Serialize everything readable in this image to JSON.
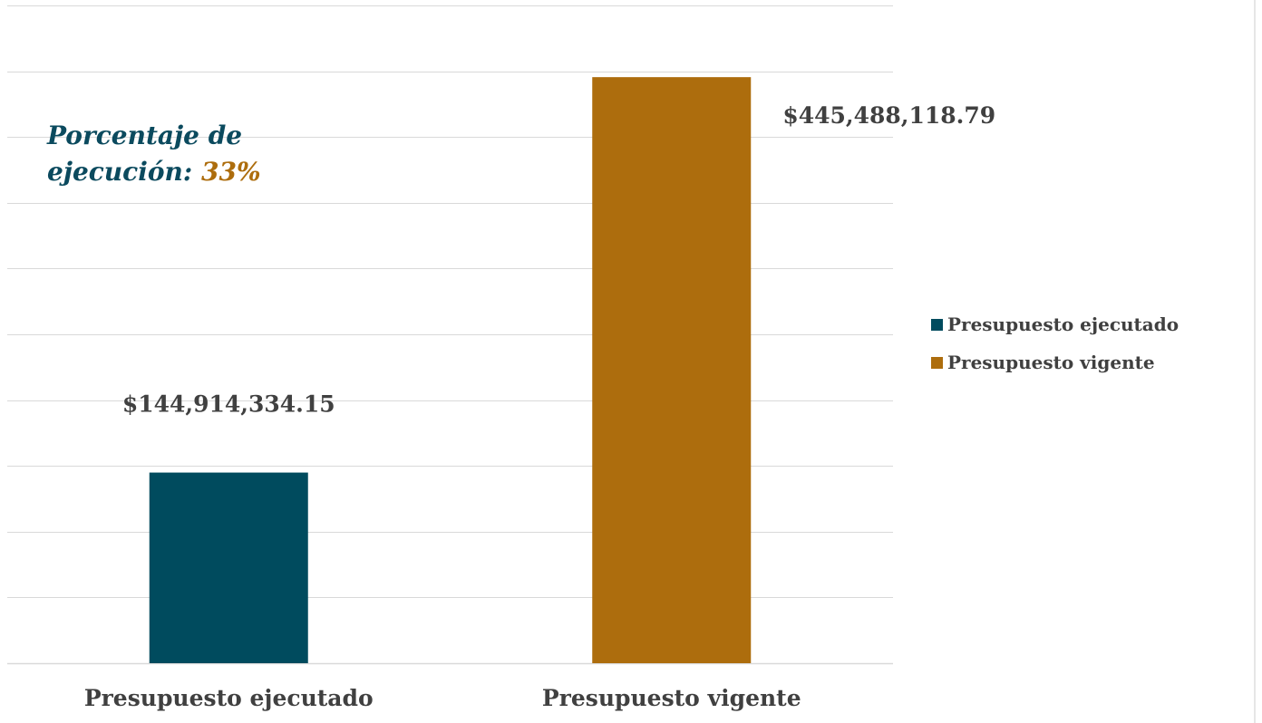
{
  "chart_data": {
    "type": "bar",
    "categories": [
      "Presupuesto ejecutado",
      "Presupuesto vigente"
    ],
    "values": [
      144914334.15,
      445488118.79
    ],
    "data_labels": [
      "$144,914,334.15",
      "$445,488,118.79"
    ],
    "series": [
      {
        "name": "Presupuesto ejecutado",
        "color": "#004b5e"
      },
      {
        "name": "Presupuesto vigente",
        "color": "#ad6d0d"
      }
    ],
    "ylim": [
      0,
      500000000
    ],
    "grid": true,
    "legend_position": "right",
    "annotation": {
      "text": "Porcentaje de ejecución:",
      "line1": "Porcentaje de",
      "line2": "ejecución:",
      "value": "33%",
      "text_color": "#0b4a5e",
      "value_color": "#ad6d0d"
    }
  }
}
